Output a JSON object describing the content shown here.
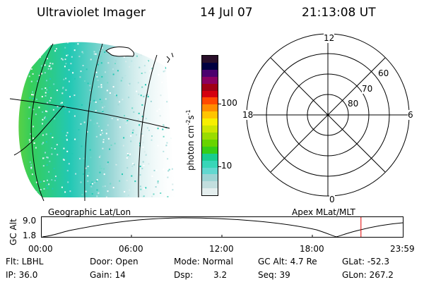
{
  "header": {
    "instrument": "Ultraviolet Imager",
    "date": "14 Jul 07",
    "time": "21:13:08 UT"
  },
  "colorbar": {
    "label_main": "photon cm",
    "label_exp1": "-2",
    "label_s": "s",
    "label_exp2": "-1",
    "ticks": [
      "100",
      "10"
    ],
    "colors": [
      "#2a0f2a",
      "#000040",
      "#4b006e",
      "#8a0060",
      "#a00015",
      "#d40010",
      "#ff4a00",
      "#ff8c00",
      "#ffc400",
      "#f7ef00",
      "#cde600",
      "#9adc00",
      "#68d400",
      "#35ce18",
      "#18cc90",
      "#38d6b8",
      "#62d8d0",
      "#9ed4d4",
      "#c2dede",
      "#e4eeee"
    ]
  },
  "polar": {
    "mlt_labels": {
      "top": "12",
      "left": "18",
      "right": "6",
      "bottom": "0"
    },
    "lat_labels": [
      "60",
      "70",
      "80"
    ]
  },
  "projection_labels": {
    "left": "Geographic Lat/Lon",
    "right": "Apex MLat/MLT"
  },
  "timeline": {
    "axis_title": "GC Alt",
    "ymax": "9.0",
    "ymin": "1.8",
    "xticks": [
      "00:00",
      "06:00",
      "12:00",
      "18:00",
      "23:59"
    ],
    "current_time_hours": 21.22,
    "marker_color": "#e00000"
  },
  "info": {
    "flt": "Flt: LBHL",
    "door": "Door: Open",
    "mode": "Mode: Normal",
    "gcalt": "GC Alt: 4.7 Re",
    "glat": "GLat: -52.3",
    "ip": "IP: 36.0",
    "gain": "Gain: 14",
    "dsp_label": "Dsp:",
    "dsp_value": "3.2",
    "seq": "Seq: 39",
    "glon": "GLon: 267.2"
  }
}
